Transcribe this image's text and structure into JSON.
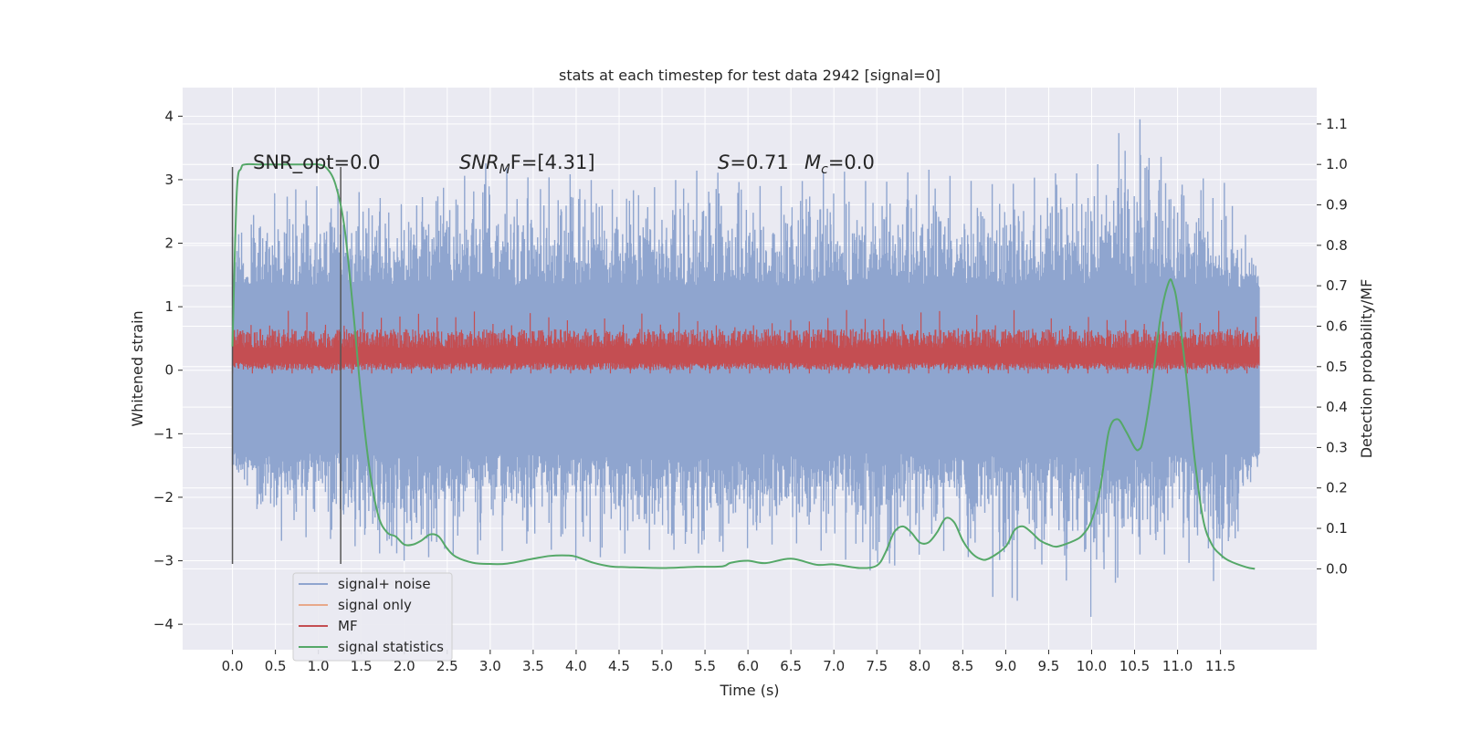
{
  "chart_data": {
    "type": "line",
    "title": "stats at each timestep for test data 2942 [signal=0]",
    "xlabel": "Time (s)",
    "ylabel": "Whitened strain",
    "ylabel_right": "Detection probability/MF",
    "xlim": [
      -0.58,
      12.62
    ],
    "ylim": [
      -4.4,
      4.45
    ],
    "ylim_right": [
      -0.2,
      1.19
    ],
    "x_ticks": [
      "0.0",
      "0.5",
      "1.0",
      "1.5",
      "2.0",
      "2.5",
      "3.0",
      "3.5",
      "4.0",
      "4.5",
      "5.0",
      "5.5",
      "6.0",
      "6.5",
      "7.0",
      "7.5",
      "8.0",
      "8.5",
      "9.0",
      "9.5",
      "10.0",
      "10.5",
      "11.0",
      "11.5"
    ],
    "y_ticks": [
      "−4",
      "−3",
      "−2",
      "−1",
      "0",
      "1",
      "2",
      "3",
      "4"
    ],
    "y_ticks_right": [
      "0.0",
      "0.1",
      "0.2",
      "0.3",
      "0.4",
      "0.5",
      "0.6",
      "0.7",
      "0.8",
      "0.9",
      "1.0",
      "1.1"
    ],
    "grid": true,
    "legend_position": "lower-left",
    "annotations": {
      "snr_opt": "SNR_opt=0.0",
      "snr_mf_main": "SNR",
      "snr_mf_sub": "M",
      "snr_mf_rest": "F=[4.31]",
      "s_main": "S",
      "s_rest": "=0.71",
      "mc_main": "M",
      "mc_sub": "c",
      "mc_rest": "=0.0"
    },
    "vlines": [
      0.0,
      1.26
    ],
    "vline_range": [
      -3.05,
      3.2
    ],
    "series": [
      {
        "name": "signal+ noise",
        "color": "#8fa5cf",
        "axis": "left",
        "envelope": {
          "x": [
            0.0,
            0.5,
            1.0,
            1.5,
            2.0,
            2.5,
            3.0,
            3.5,
            4.0,
            4.5,
            5.0,
            5.5,
            6.0,
            6.5,
            7.0,
            7.5,
            8.0,
            8.5,
            9.0,
            9.5,
            10.0,
            10.5,
            11.0,
            11.5,
            11.95
          ],
          "upper": [
            2.1,
            2.8,
            2.9,
            2.8,
            2.6,
            2.9,
            3.3,
            3.0,
            3.1,
            2.8,
            2.9,
            3.2,
            2.9,
            2.9,
            3.2,
            2.9,
            3.2,
            3.0,
            2.9,
            3.1,
            3.1,
            4.1,
            2.9,
            3.1,
            1.6
          ],
          "lower": [
            -1.5,
            -2.7,
            -2.6,
            -2.8,
            -3.0,
            -2.9,
            -2.9,
            -2.7,
            -3.0,
            -2.9,
            -2.8,
            -2.9,
            -2.8,
            -2.7,
            -2.9,
            -3.2,
            -2.9,
            -2.8,
            -3.9,
            -2.9,
            -3.9,
            -2.9,
            -2.9,
            -3.4,
            -1.5
          ],
          "core_upper": 1.3,
          "core_lower": -1.3
        }
      },
      {
        "name": "signal only",
        "color": "#e8a88a",
        "axis": "left",
        "values": []
      },
      {
        "name": "MF",
        "color": "#c44e52",
        "axis": "left",
        "envelope": {
          "x": [
            0.0,
            11.95
          ],
          "upper_typical": 0.65,
          "lower_typical": 0.0,
          "upper_peak": 0.95,
          "lower_peak": -0.05
        }
      },
      {
        "name": "signal statistics",
        "color": "#55a868",
        "axis": "right",
        "x": [
          0.0,
          0.05,
          0.1,
          0.15,
          0.3,
          0.5,
          0.7,
          0.9,
          1.0,
          1.1,
          1.2,
          1.3,
          1.4,
          1.5,
          1.6,
          1.7,
          1.8,
          1.9,
          2.0,
          2.1,
          2.2,
          2.3,
          2.4,
          2.5,
          2.6,
          2.8,
          3.0,
          3.2,
          3.5,
          3.7,
          3.9,
          4.0,
          4.2,
          4.4,
          4.6,
          5.0,
          5.4,
          5.7,
          5.8,
          6.0,
          6.2,
          6.5,
          6.8,
          7.0,
          7.3,
          7.5,
          7.6,
          7.7,
          7.8,
          7.9,
          8.0,
          8.1,
          8.2,
          8.3,
          8.4,
          8.5,
          8.6,
          8.7,
          8.8,
          9.0,
          9.1,
          9.2,
          9.3,
          9.4,
          9.5,
          9.6,
          9.8,
          9.9,
          10.0,
          10.1,
          10.2,
          10.3,
          10.4,
          10.5,
          10.55,
          10.6,
          10.7,
          10.8,
          10.9,
          10.95,
          11.0,
          11.1,
          11.2,
          11.3,
          11.4,
          11.5,
          11.6,
          11.8,
          11.9
        ],
        "values": [
          0.55,
          0.93,
          0.99,
          1.0,
          1.0,
          1.0,
          1.0,
          1.0,
          1.0,
          0.99,
          0.95,
          0.85,
          0.65,
          0.42,
          0.24,
          0.13,
          0.09,
          0.08,
          0.06,
          0.06,
          0.07,
          0.085,
          0.08,
          0.05,
          0.03,
          0.015,
          0.012,
          0.013,
          0.025,
          0.032,
          0.033,
          0.03,
          0.015,
          0.006,
          0.004,
          0.002,
          0.005,
          0.006,
          0.015,
          0.02,
          0.014,
          0.025,
          0.01,
          0.011,
          0.002,
          0.008,
          0.04,
          0.09,
          0.105,
          0.09,
          0.065,
          0.065,
          0.09,
          0.125,
          0.115,
          0.07,
          0.04,
          0.025,
          0.025,
          0.055,
          0.095,
          0.105,
          0.09,
          0.07,
          0.06,
          0.055,
          0.07,
          0.085,
          0.12,
          0.2,
          0.34,
          0.37,
          0.34,
          0.3,
          0.295,
          0.32,
          0.45,
          0.62,
          0.71,
          0.7,
          0.65,
          0.48,
          0.27,
          0.12,
          0.06,
          0.035,
          0.02,
          0.004,
          0.0
        ]
      }
    ]
  }
}
